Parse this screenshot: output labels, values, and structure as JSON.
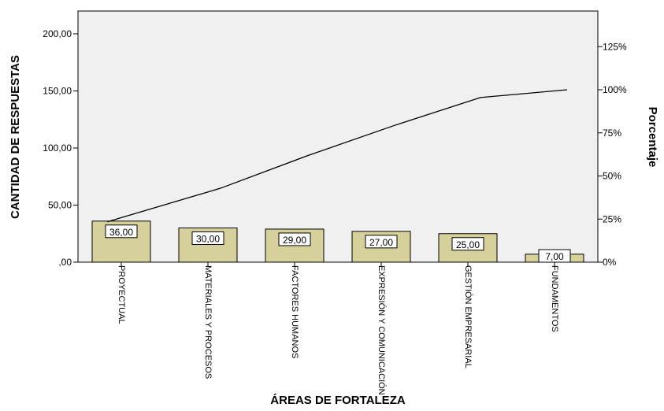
{
  "chart_data": {
    "type": "bar",
    "xlabel": "ÁREAS DE FORTALEZA",
    "ylabel": "CANTIDAD DE RESPUESTAS",
    "y2label": "Porcentaje",
    "categories": [
      "PROYECTUAL",
      "MATERIALES Y PROCESOS",
      "FACTORES HUMANOS",
      "EXPRESIÓN Y COMUNICACIÓN",
      "GESTIÓN EMPRESARIAL",
      "FUNDAMENTOS"
    ],
    "values": [
      36,
      30,
      29,
      27,
      25,
      7
    ],
    "data_labels": [
      "36,00",
      "30,00",
      "29,00",
      "27,00",
      "25,00",
      "7,00"
    ],
    "ylim": [
      0,
      220
    ],
    "yticks": [
      0,
      50,
      100,
      150,
      200
    ],
    "ytick_labels": [
      ",00",
      "50,00",
      "100,00",
      "150,00",
      "200,00"
    ],
    "cumulative_percent": [
      23.4,
      42.9,
      61.7,
      79.2,
      95.5,
      100
    ],
    "y2ticks": [
      0,
      25,
      50,
      75,
      100,
      125
    ],
    "y2tick_labels": [
      "0%",
      "25%",
      "50%",
      "75%",
      "100%",
      "125%"
    ],
    "grid": false,
    "colors": {
      "bar_fill": "#d6d09a",
      "bar_stroke": "#000000",
      "plot_bg": "#f0f0f0",
      "line": "#000000"
    }
  }
}
